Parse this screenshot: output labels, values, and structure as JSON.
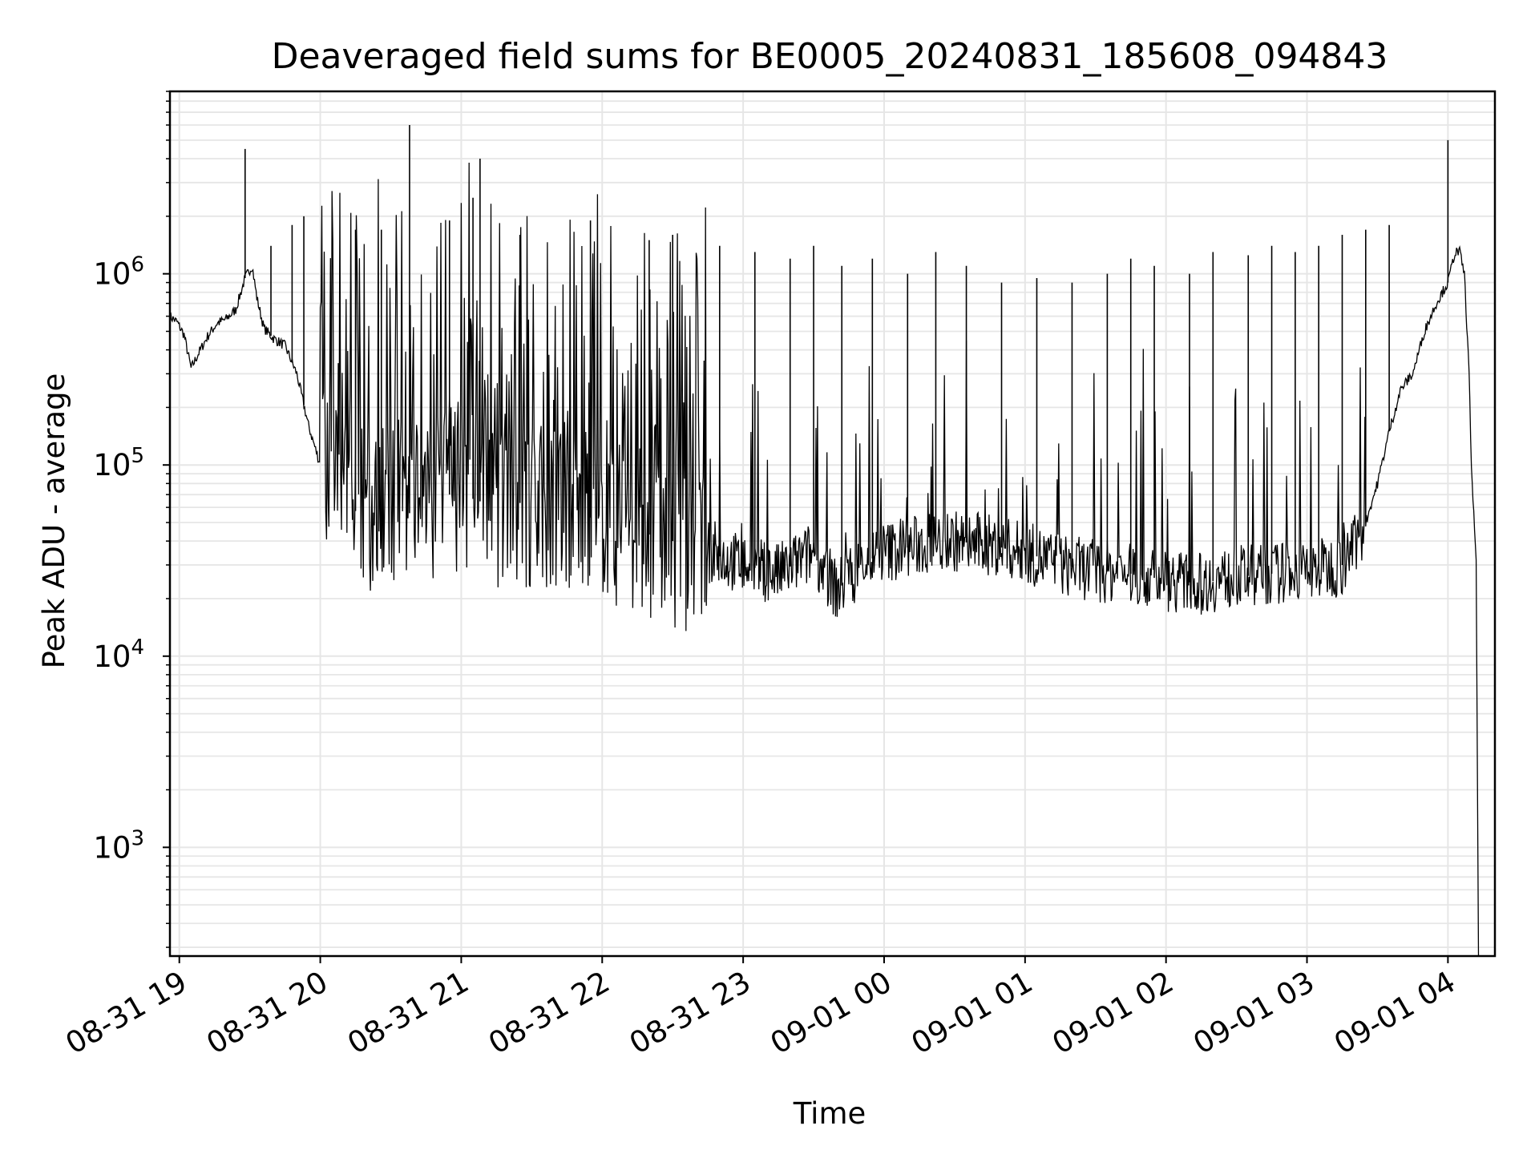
{
  "chart_data": {
    "type": "line",
    "title": "Deaveraged field sums for BE0005_20240831_185608_094843",
    "xlabel": "Time",
    "ylabel": "Peak ADU - average",
    "y_scale": "log",
    "ylim": [
      270,
      9000000
    ],
    "xlim": [
      "2024-08-31 18:56",
      "2024-09-01 04:20"
    ],
    "grid": true,
    "line_color": "#000000",
    "grid_color": "#e6e6e6",
    "x_ticks": [
      "08-31 19",
      "08-31 20",
      "08-31 21",
      "08-31 22",
      "08-31 23",
      "09-01 00",
      "09-01 01",
      "09-01 02",
      "09-01 03",
      "09-01 04"
    ],
    "y_ticks": [
      {
        "value": 1000,
        "base": "10",
        "exp": "3"
      },
      {
        "value": 10000,
        "base": "10",
        "exp": "4"
      },
      {
        "value": 100000,
        "base": "10",
        "exp": "5"
      },
      {
        "value": 1000000,
        "base": "10",
        "exp": "6"
      }
    ],
    "series": [
      {
        "points": [
          [
            "2024-08-31 18:56",
            600000
          ],
          [
            "2024-08-31 18:59",
            560000
          ],
          [
            "2024-08-31 19:02",
            480000
          ],
          [
            "2024-08-31 19:05",
            320000
          ],
          [
            "2024-08-31 19:08",
            380000
          ],
          [
            "2024-08-31 19:12",
            470000
          ],
          [
            "2024-08-31 19:16",
            550000
          ],
          [
            "2024-08-31 19:20",
            580000
          ],
          [
            "2024-08-31 19:24",
            650000
          ],
          [
            "2024-08-31 19:28",
            950000
          ],
          [
            "2024-08-31 19:31",
            1100000
          ],
          [
            "2024-08-31 19:33",
            750000
          ],
          [
            "2024-08-31 19:36",
            520000
          ],
          [
            "2024-08-31 19:40",
            460000
          ],
          [
            "2024-08-31 19:45",
            420000
          ],
          [
            "2024-08-31 19:50",
            300000
          ],
          [
            "2024-08-31 19:55",
            160000
          ],
          [
            "2024-08-31 20:00",
            100000
          ],
          [
            "2024-08-31 20:05",
            75000
          ],
          [
            "2024-08-31 20:10",
            60000
          ],
          [
            "2024-08-31 20:20",
            55000
          ],
          [
            "2024-08-31 20:30",
            60000
          ],
          [
            "2024-08-31 20:40",
            55000
          ],
          [
            "2024-08-31 20:50",
            70000
          ],
          [
            "2024-08-31 21:00",
            70000
          ],
          [
            "2024-08-31 21:15",
            60000
          ],
          [
            "2024-08-31 21:30",
            65000
          ],
          [
            "2024-08-31 21:45",
            60000
          ],
          [
            "2024-08-31 22:00",
            50000
          ],
          [
            "2024-08-31 22:15",
            45000
          ],
          [
            "2024-08-31 22:30",
            40000
          ],
          [
            "2024-08-31 22:45",
            35000
          ],
          [
            "2024-08-31 23:00",
            30000
          ],
          [
            "2024-08-31 23:15",
            27000
          ],
          [
            "2024-08-31 23:30",
            35000
          ],
          [
            "2024-08-31 23:40",
            22000
          ],
          [
            "2024-08-31 23:50",
            30000
          ],
          [
            "2024-09-01 00:00",
            35000
          ],
          [
            "2024-09-01 00:15",
            38000
          ],
          [
            "2024-09-01 00:30",
            40000
          ],
          [
            "2024-09-01 00:45",
            38000
          ],
          [
            "2024-09-01 01:00",
            35000
          ],
          [
            "2024-09-01 01:15",
            30000
          ],
          [
            "2024-09-01 01:30",
            28000
          ],
          [
            "2024-09-01 01:45",
            27000
          ],
          [
            "2024-09-01 02:00",
            25000
          ],
          [
            "2024-09-01 02:15",
            24000
          ],
          [
            "2024-09-01 02:30",
            26000
          ],
          [
            "2024-09-01 02:45",
            27000
          ],
          [
            "2024-09-01 03:00",
            28000
          ],
          [
            "2024-09-01 03:15",
            30000
          ],
          [
            "2024-09-01 03:25",
            50000
          ],
          [
            "2024-09-01 03:30",
            80000
          ],
          [
            "2024-09-01 03:35",
            150000
          ],
          [
            "2024-09-01 03:40",
            250000
          ],
          [
            "2024-09-01 03:45",
            300000
          ],
          [
            "2024-09-01 03:50",
            500000
          ],
          [
            "2024-09-01 03:55",
            700000
          ],
          [
            "2024-09-01 04:00",
            900000
          ],
          [
            "2024-09-01 04:03",
            1300000
          ],
          [
            "2024-09-01 04:05",
            1300000
          ],
          [
            "2024-09-01 04:07",
            1000000
          ],
          [
            "2024-09-01 04:09",
            300000
          ],
          [
            "2024-09-01 04:10",
            100000
          ],
          [
            "2024-09-01 04:11",
            55000
          ],
          [
            "2024-09-01 04:12",
            30000
          ],
          [
            "2024-09-01 04:13",
            270
          ]
        ],
        "spikes": [
          [
            "2024-08-31 19:28",
            4500000
          ],
          [
            "2024-08-31 19:39",
            1400000
          ],
          [
            "2024-08-31 19:48",
            1800000
          ],
          [
            "2024-08-31 19:53",
            2000000
          ],
          [
            "2024-08-31 20:15",
            1700000
          ],
          [
            "2024-08-31 20:26",
            1700000
          ],
          [
            "2024-08-31 20:38",
            6000000
          ],
          [
            "2024-08-31 20:55",
            1900000
          ],
          [
            "2024-08-31 21:05",
            2500000
          ],
          [
            "2024-08-31 21:08",
            4000000
          ],
          [
            "2024-08-31 21:25",
            1600000
          ],
          [
            "2024-08-31 21:55",
            1900000
          ],
          [
            "2024-08-31 22:20",
            1500000
          ],
          [
            "2024-08-31 22:30",
            1600000
          ],
          [
            "2024-08-31 22:50",
            1400000
          ],
          [
            "2024-08-31 23:05",
            1300000
          ],
          [
            "2024-08-31 23:20",
            1200000
          ],
          [
            "2024-08-31 23:30",
            1400000
          ],
          [
            "2024-08-31 23:42",
            1100000
          ],
          [
            "2024-08-31 23:55",
            1200000
          ],
          [
            "2024-09-01 00:10",
            1000000
          ],
          [
            "2024-09-01 00:22",
            1300000
          ],
          [
            "2024-09-01 00:35",
            1100000
          ],
          [
            "2024-09-01 00:50",
            900000
          ],
          [
            "2024-09-01 01:05",
            950000
          ],
          [
            "2024-09-01 01:20",
            900000
          ],
          [
            "2024-09-01 01:35",
            1000000
          ],
          [
            "2024-09-01 01:45",
            1200000
          ],
          [
            "2024-09-01 01:55",
            1100000
          ],
          [
            "2024-09-01 02:10",
            1000000
          ],
          [
            "2024-09-01 02:20",
            1300000
          ],
          [
            "2024-09-01 02:35",
            1250000
          ],
          [
            "2024-09-01 02:45",
            1400000
          ],
          [
            "2024-09-01 02:55",
            1300000
          ],
          [
            "2024-09-01 03:05",
            1400000
          ],
          [
            "2024-09-01 03:15",
            1600000
          ],
          [
            "2024-09-01 03:25",
            1700000
          ],
          [
            "2024-09-01 03:35",
            1800000
          ],
          [
            "2024-09-01 04:00",
            5000000
          ]
        ]
      }
    ]
  }
}
